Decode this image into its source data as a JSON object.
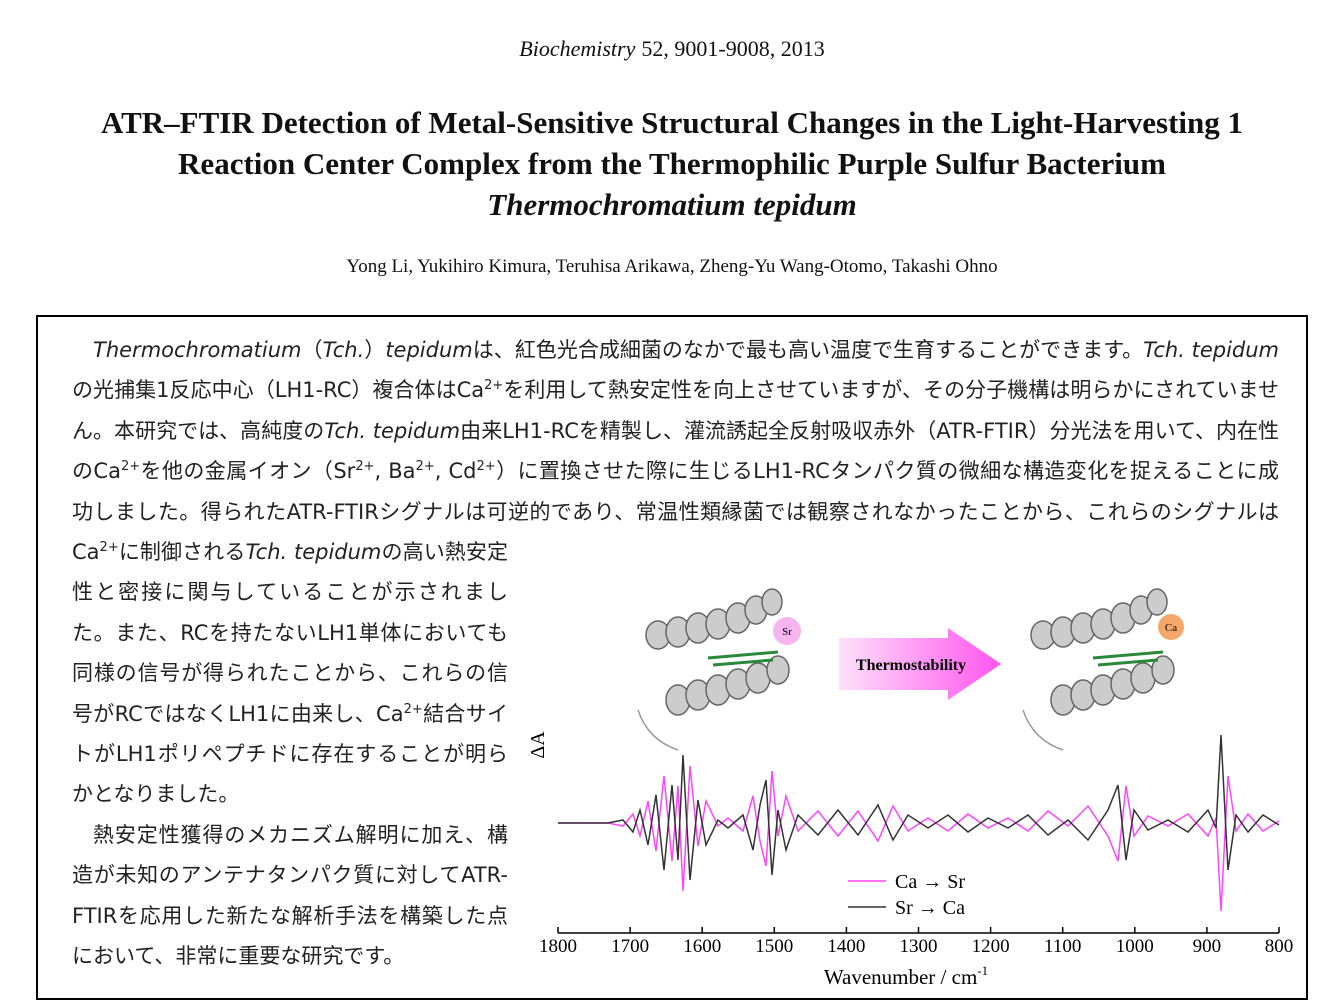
{
  "header": {
    "journal": "Biochemistry",
    "citation": "52, 9001-9008, 2013",
    "title": [
      "ATR–FTIR Detection of Metal-Sensitive Structural Changes in the Light-Harvesting 1",
      "Reaction Center Complex from the Thermophilic Purple Sulfur Bacterium",
      "Thermochromatium tepidum"
    ],
    "authors": "Yong Li, Yukihiro Kimura, Teruhisa Arikawa, Zheng-Yu Wang-Otomo, Takashi Ohno"
  },
  "body": {
    "paragraphs": [
      [
        {
          "i": "Thermochromatium"
        },
        "（",
        {
          "i": "Tch."
        },
        "）",
        {
          "i": "tepidum"
        },
        "は、紅色光合成細菌のなかで最も高い温度で生育することができます。",
        {
          "i": "Tch. tepidum"
        },
        "の光捕集1反応中心（LH1-RC）複合体はCa",
        {
          "sup": "2+"
        },
        "を利用して熱安定性を向上させていますが、その分子機構は明らかにされていません。本研究では、高純度の",
        {
          "i": "Tch. tepidum"
        },
        "由来LH1-RCを精製し、灌流誘起全反射吸収赤外（ATR-FTIR）分光法を用いて、内在性のCa",
        {
          "sup": "2+"
        },
        "を他の金属イオン（Sr",
        {
          "sup": "2+"
        },
        ", Ba",
        {
          "sup": "2+"
        },
        ", Cd",
        {
          "sup": "2+"
        },
        "）に置換させた際に生じるLH1-RCタンパク質の微細な構造変化を捉えることに成功しました。得られたATR-FTIRシグナルは可逆的であり、常温性類縁菌では観察されなかったことから、これらのシグナルはCa",
        {
          "sup": "2+"
        },
        "に制御される",
        {
          "i": "Tch. tepidum"
        },
        "の高い熱安定性と密接に関与していることが示されました。また、RCを持たないLH1単体においても同様の信号が得られたことから、これらの信号がRCではなくLH1に由来し、Ca",
        {
          "sup": "2+"
        },
        "結合サイトがLH1ポリペプチドに存在することが明らかとなりました。"
      ],
      [
        "熱安定性獲得のメカニズム解明に加え、構造が未知のアンテナタンパク質に対してATR-FTIRを応用した新たな解析手法を構築した点において、非常に重要な研究です。"
      ]
    ]
  },
  "figure": {
    "xlim": [
      1800,
      800
    ],
    "xticks": [
      1800,
      1700,
      1600,
      1500,
      1400,
      1300,
      1200,
      1100,
      1000,
      900,
      800
    ],
    "x_label": "Wavenumber / cm",
    "x_label_sup": "-1",
    "y_label": "ΔA",
    "legend": [
      {
        "name": "Ca → Sr",
        "color": "#ff44ff"
      },
      {
        "name": "Sr → Ca",
        "color": "#333333"
      }
    ],
    "arrow": "Thermostability",
    "ions": [
      "Sr",
      "Ca"
    ]
  }
}
